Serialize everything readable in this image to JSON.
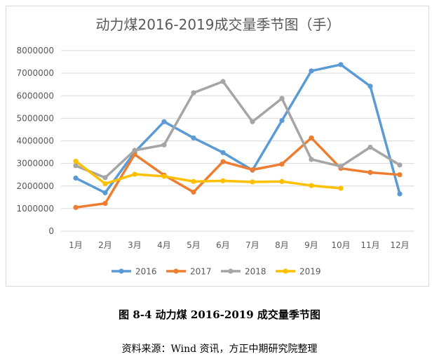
{
  "chart_data": {
    "type": "line",
    "title": "动力煤2016-2019成交量季节图（手）",
    "categories": [
      "1月",
      "2月",
      "3月",
      "4月",
      "5月",
      "6月",
      "7月",
      "8月",
      "9月",
      "10月",
      "11月",
      "12月"
    ],
    "ylim": [
      0,
      8000000
    ],
    "yticks": [
      0,
      1000000,
      2000000,
      3000000,
      4000000,
      5000000,
      6000000,
      7000000,
      8000000
    ],
    "ytick_labels": [
      "0",
      "1000000",
      "2000000",
      "3000000",
      "4000000",
      "5000000",
      "6000000",
      "7000000",
      "8000000"
    ],
    "grid": true,
    "legend": "bottom",
    "series": [
      {
        "name": "2016",
        "color": "#5b9bd5",
        "values": [
          2350000,
          1700000,
          3500000,
          4850000,
          4130000,
          3480000,
          2700000,
          4900000,
          7100000,
          7380000,
          6420000,
          1650000
        ]
      },
      {
        "name": "2017",
        "color": "#ed7d31",
        "values": [
          1050000,
          1230000,
          3400000,
          2480000,
          1730000,
          3080000,
          2720000,
          2970000,
          4130000,
          2780000,
          2600000,
          2500000
        ]
      },
      {
        "name": "2018",
        "color": "#a5a5a5",
        "values": [
          2900000,
          2370000,
          3580000,
          3820000,
          6130000,
          6630000,
          4850000,
          5880000,
          3180000,
          2870000,
          3720000,
          2930000
        ]
      },
      {
        "name": "2019",
        "color": "#ffc000",
        "values": [
          3100000,
          2100000,
          2520000,
          2430000,
          2200000,
          2230000,
          2180000,
          2200000,
          2020000,
          1900000,
          null,
          null
        ]
      }
    ]
  },
  "caption": "图 8-4 动力煤 2016-2019 成交量季节图",
  "source": "资料来源：Wind 资讯，方正中期研究院整理"
}
